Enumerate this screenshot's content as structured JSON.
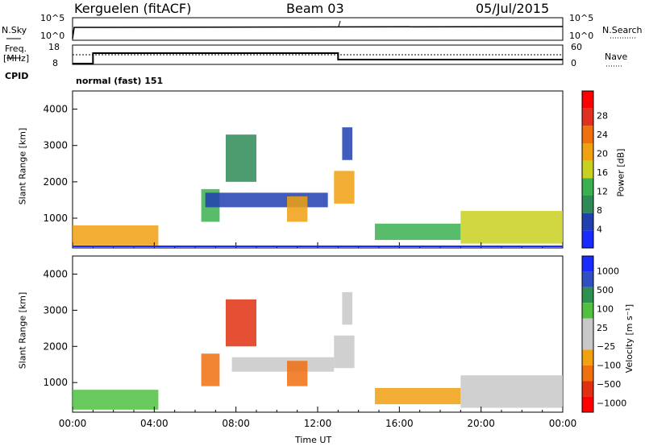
{
  "header": {
    "title": "Kerguelen (fitACF)",
    "beam": "Beam 03",
    "date": "05/Jul/2015"
  },
  "sky_panel": {
    "left_label": "N.Sky",
    "left_ticks": [
      "10^5",
      "10^0"
    ],
    "right_label": "N.Search",
    "right_ticks": [
      "10^5",
      "10^0"
    ]
  },
  "freq_panel": {
    "left_label_1": "Freq.",
    "left_label_2": "[MHz]",
    "left_ticks": [
      "18",
      "8"
    ],
    "right_label": "Nave",
    "right_ticks": [
      "60",
      "0"
    ],
    "cpid_label": "CPID",
    "mode": "normal (fast) 151"
  },
  "colors": {
    "power_scale": [
      "#1a2bff",
      "#2040b0",
      "#2e8b57",
      "#3cb050",
      "#c8d020",
      "#f0a010",
      "#f07010",
      "#e03020",
      "#ff0000"
    ],
    "velocity_scale": [
      "#ff0000",
      "#e03010",
      "#f07010",
      "#f0a010",
      "#c8c8c8",
      "#c8c8c8",
      "#50c040",
      "#2e9050",
      "#3050c0",
      "#1a2bff"
    ]
  },
  "chart_data": [
    {
      "type": "heatmap",
      "name": "power",
      "ylabel": "Slant Range [km]",
      "ylim": [
        180,
        4500
      ],
      "y_ticks": [
        "1000",
        "2000",
        "3000",
        "4000"
      ],
      "x_ticks": [
        "00:00",
        "04:00",
        "08:00",
        "12:00",
        "16:00",
        "20:00",
        "00:00"
      ],
      "colorbar_label": "Power [dB]",
      "colorbar_ticks": [
        "4",
        "8",
        "12",
        "16",
        "20",
        "24",
        "28"
      ],
      "regions": [
        {
          "t0": 0.0,
          "t1": 4.2,
          "r0": 250,
          "r1": 800,
          "level": 5
        },
        {
          "t0": 6.3,
          "t1": 7.2,
          "r0": 900,
          "r1": 1800,
          "level": 3
        },
        {
          "t0": 6.5,
          "t1": 12.5,
          "r0": 1300,
          "r1": 1700,
          "level": 1
        },
        {
          "t0": 7.5,
          "t1": 9.0,
          "r0": 2000,
          "r1": 3300,
          "level": 2
        },
        {
          "t0": 10.5,
          "t1": 11.5,
          "r0": 900,
          "r1": 1600,
          "level": 5
        },
        {
          "t0": 12.8,
          "t1": 13.8,
          "r0": 1400,
          "r1": 2300,
          "level": 5
        },
        {
          "t0": 13.2,
          "t1": 13.7,
          "r0": 2600,
          "r1": 3500,
          "level": 1
        },
        {
          "t0": 14.8,
          "t1": 19.0,
          "r0": 400,
          "r1": 850,
          "level": 3
        },
        {
          "t0": 19.0,
          "t1": 24.0,
          "r0": 300,
          "r1": 1200,
          "level": 4
        }
      ]
    },
    {
      "type": "heatmap",
      "name": "velocity",
      "ylabel": "Slant Range [km]",
      "ylim": [
        180,
        4500
      ],
      "y_ticks": [
        "1000",
        "2000",
        "3000",
        "4000"
      ],
      "x_ticks": [
        "00:00",
        "04:00",
        "08:00",
        "12:00",
        "16:00",
        "20:00",
        "00:00"
      ],
      "xlabel": "Time UT",
      "colorbar_label": "Velocity [m s⁻¹]",
      "colorbar_ticks": [
        "1000",
        "500",
        "100",
        "25",
        "−25",
        "−100",
        "−500",
        "−1000"
      ],
      "regions": [
        {
          "t0": 0.0,
          "t1": 4.2,
          "r0": 250,
          "r1": 800,
          "level": 6
        },
        {
          "t0": 6.3,
          "t1": 7.2,
          "r0": 900,
          "r1": 1800,
          "level": 2
        },
        {
          "t0": 7.8,
          "t1": 12.8,
          "r0": 1300,
          "r1": 1700,
          "level": 4
        },
        {
          "t0": 7.5,
          "t1": 9.0,
          "r0": 2000,
          "r1": 3300,
          "level": 1
        },
        {
          "t0": 10.5,
          "t1": 11.5,
          "r0": 900,
          "r1": 1600,
          "level": 2
        },
        {
          "t0": 12.8,
          "t1": 13.8,
          "r0": 1400,
          "r1": 2300,
          "level": 4
        },
        {
          "t0": 13.2,
          "t1": 13.7,
          "r0": 2600,
          "r1": 3500,
          "level": 4
        },
        {
          "t0": 14.8,
          "t1": 19.0,
          "r0": 400,
          "r1": 850,
          "level": 3
        },
        {
          "t0": 19.0,
          "t1": 24.0,
          "r0": 300,
          "r1": 1200,
          "level": 4
        }
      ]
    }
  ]
}
